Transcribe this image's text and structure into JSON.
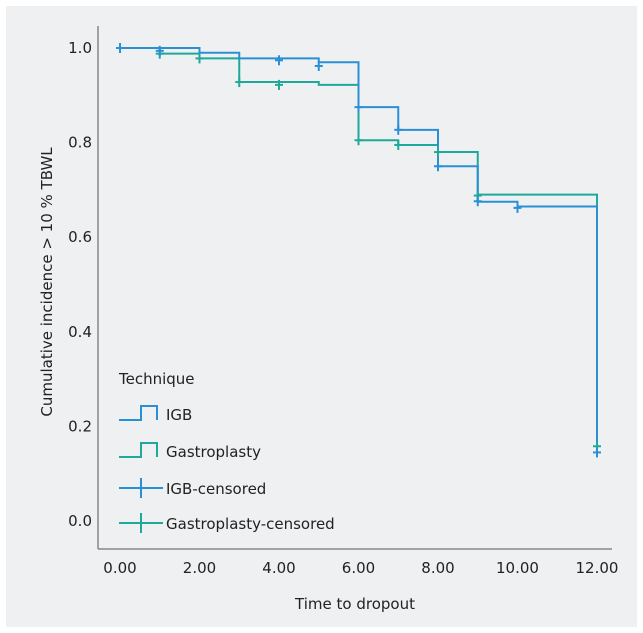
{
  "chart_data": {
    "type": "line",
    "subtype": "kaplan-meier step",
    "title": "",
    "xlabel": "Time to dropout",
    "ylabel": "Cumulative incidence > 10 % TBWL",
    "xlim": [
      0,
      12
    ],
    "ylim": [
      0,
      1
    ],
    "x_ticks": [
      "0.00",
      "2.00",
      "4.00",
      "6.00",
      "8.00",
      "10.00",
      "12.00"
    ],
    "y_ticks": [
      "0.0",
      "0.2",
      "0.4",
      "0.6",
      "0.8",
      "1.0"
    ],
    "grid": false,
    "legend": {
      "title": "Technique",
      "position": "bottom-left",
      "entries": [
        "IGB",
        "Gastroplasty",
        "IGB-censored",
        "Gastroplasty-censored"
      ]
    },
    "series": [
      {
        "name": "IGB",
        "color": "#2b8fd6",
        "steps": [
          [
            0,
            1.0
          ],
          [
            2,
            0.99
          ],
          [
            3,
            0.978
          ],
          [
            5,
            0.97
          ],
          [
            6,
            0.875
          ],
          [
            7,
            0.827
          ],
          [
            8,
            0.75
          ],
          [
            9,
            0.675
          ],
          [
            10,
            0.665
          ],
          [
            12,
            0.14
          ]
        ],
        "censored": [
          [
            0,
            1.0
          ],
          [
            1,
            0.994
          ],
          [
            4,
            0.974
          ],
          [
            5,
            0.962
          ],
          [
            6,
            0.875
          ],
          [
            7,
            0.827
          ],
          [
            8,
            0.75
          ],
          [
            9,
            0.676
          ],
          [
            10,
            0.662
          ],
          [
            12,
            0.145
          ]
        ]
      },
      {
        "name": "Gastroplasty",
        "color": "#1fa99a",
        "steps": [
          [
            0,
            1.0
          ],
          [
            1,
            0.988
          ],
          [
            2,
            0.978
          ],
          [
            3,
            0.928
          ],
          [
            5,
            0.922
          ],
          [
            6,
            0.805
          ],
          [
            7,
            0.795
          ],
          [
            8,
            0.78
          ],
          [
            9,
            0.69
          ],
          [
            12,
            0.155
          ]
        ],
        "censored": [
          [
            0,
            1.0
          ],
          [
            1,
            0.988
          ],
          [
            2,
            0.978
          ],
          [
            3,
            0.928
          ],
          [
            4,
            0.922
          ],
          [
            6,
            0.805
          ],
          [
            7,
            0.795
          ],
          [
            8,
            0.78
          ],
          [
            9,
            0.688
          ],
          [
            12,
            0.158
          ]
        ]
      }
    ]
  }
}
